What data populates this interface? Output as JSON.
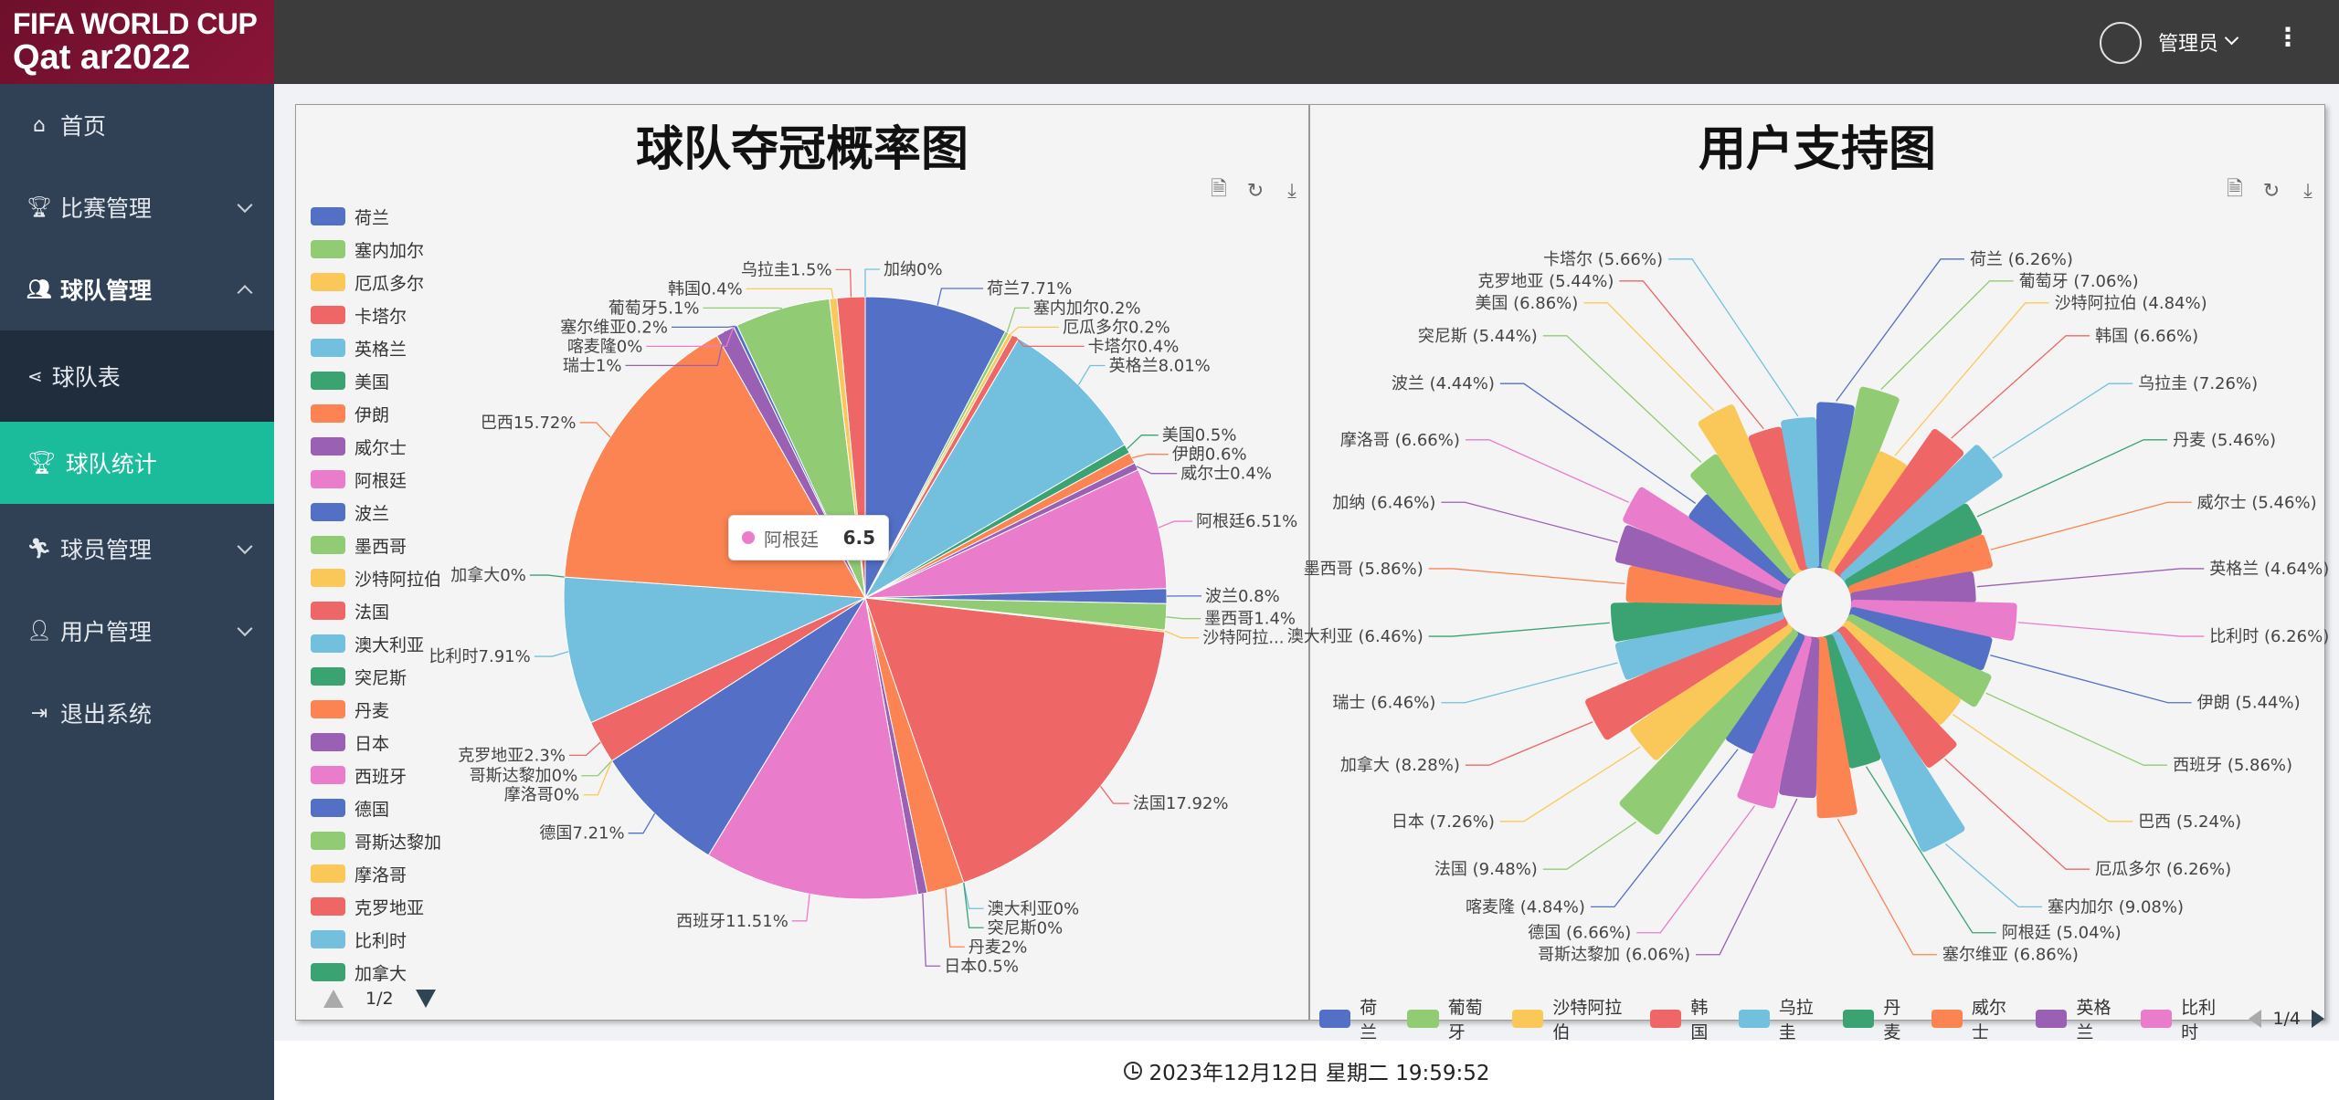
{
  "logo": {
    "line1": "FIFA WORLD CUP",
    "line2": "Qat ar2022"
  },
  "sidebar": {
    "items": [
      {
        "label": "首页"
      },
      {
        "label": "比赛管理"
      },
      {
        "label": "球队管理"
      },
      {
        "label": "球队表"
      },
      {
        "label": "球队统计"
      },
      {
        "label": "球员管理"
      },
      {
        "label": "用户管理"
      },
      {
        "label": "退出系统"
      }
    ]
  },
  "header": {
    "username": "管理员"
  },
  "toolbar_icons": [
    "data-view-icon",
    "restore-icon",
    "save-image-icon"
  ],
  "footer": {
    "datetime": "2023年12月12日 星期二 19:59:52"
  },
  "colors": [
    "#5470c6",
    "#91cc75",
    "#fac858",
    "#ee6666",
    "#73c0de",
    "#3ba272",
    "#fc8452",
    "#9a60b4",
    "#ea7ccc"
  ],
  "tooltip": {
    "name": "阿根廷",
    "value": "6.5"
  },
  "left_legend": {
    "items": [
      "荷兰",
      "塞内加尔",
      "厄瓜多尔",
      "卡塔尔",
      "英格兰",
      "美国",
      "伊朗",
      "威尔士",
      "阿根廷",
      "波兰",
      "墨西哥",
      "沙特阿拉伯",
      "法国",
      "澳大利亚",
      "突尼斯",
      "丹麦",
      "日本",
      "西班牙",
      "德国",
      "哥斯达黎加",
      "摩洛哥",
      "克罗地亚",
      "比利时",
      "加拿大"
    ],
    "page": "1/2"
  },
  "right_legend": {
    "items": [
      "荷兰",
      "葡萄牙",
      "沙特阿拉伯",
      "韩国",
      "乌拉圭",
      "丹麦",
      "威尔士",
      "英格兰",
      "比利时"
    ],
    "page": "1/4"
  },
  "chart_data": [
    {
      "type": "pie",
      "title": "球队夺冠概率图",
      "slices": [
        {
          "name": "荷兰",
          "value": 7.71,
          "label": "荷兰7.71%"
        },
        {
          "name": "塞内加尔",
          "value": 0.2,
          "label": "塞内加尔0.2%"
        },
        {
          "name": "厄瓜多尔",
          "value": 0.2,
          "label": "厄瓜多尔0.2%"
        },
        {
          "name": "卡塔尔",
          "value": 0.4,
          "label": "卡塔尔0.4%"
        },
        {
          "name": "英格兰",
          "value": 8.01,
          "label": "英格兰8.01%"
        },
        {
          "name": "美国",
          "value": 0.5,
          "label": "美国0.5%"
        },
        {
          "name": "伊朗",
          "value": 0.6,
          "label": "伊朗0.6%"
        },
        {
          "name": "威尔士",
          "value": 0.4,
          "label": "威尔士0.4%"
        },
        {
          "name": "阿根廷",
          "value": 6.51,
          "label": "阿根廷6.51%"
        },
        {
          "name": "波兰",
          "value": 0.8,
          "label": "波兰0.8%"
        },
        {
          "name": "墨西哥",
          "value": 1.4,
          "label": "墨西哥1.4%"
        },
        {
          "name": "沙特阿拉伯",
          "value": 0.1,
          "label": "沙特阿拉..."
        },
        {
          "name": "法国",
          "value": 17.92,
          "label": "法国17.92%"
        },
        {
          "name": "澳大利亚",
          "value": 0,
          "label": "澳大利亚0%"
        },
        {
          "name": "突尼斯",
          "value": 0,
          "label": "突尼斯0%"
        },
        {
          "name": "丹麦",
          "value": 2,
          "label": "丹麦2%"
        },
        {
          "name": "日本",
          "value": 0.5,
          "label": "日本0.5%"
        },
        {
          "name": "西班牙",
          "value": 11.51,
          "label": "西班牙11.51%"
        },
        {
          "name": "德国",
          "value": 7.21,
          "label": "德国7.21%"
        },
        {
          "name": "哥斯达黎加",
          "value": 0,
          "label": "哥斯达黎加0%"
        },
        {
          "name": "摩洛哥",
          "value": 0,
          "label": "摩洛哥0%"
        },
        {
          "name": "克罗地亚",
          "value": 2.3,
          "label": "克罗地亚2.3%"
        },
        {
          "name": "比利时",
          "value": 7.91,
          "label": "比利时7.91%"
        },
        {
          "name": "加拿大",
          "value": 0,
          "label": "加拿大0%"
        },
        {
          "name": "巴西",
          "value": 15.72,
          "label": "巴西15.72%"
        },
        {
          "name": "瑞士",
          "value": 1,
          "label": "瑞士1%"
        },
        {
          "name": "喀麦隆",
          "value": 0,
          "label": "喀麦隆0%"
        },
        {
          "name": "塞尔维亚",
          "value": 0.2,
          "label": "塞尔维亚0.2%"
        },
        {
          "name": "葡萄牙",
          "value": 5.1,
          "label": "葡萄牙5.1%"
        },
        {
          "name": "韩国",
          "value": 0.4,
          "label": "韩国0.4%"
        },
        {
          "name": "乌拉圭",
          "value": 1.5,
          "label": "乌拉圭1.5%"
        },
        {
          "name": "加纳",
          "value": 0,
          "label": "加纳0%"
        }
      ]
    },
    {
      "type": "pie",
      "subtype": "nightingale-rose",
      "title": "用户支持图",
      "slices": [
        {
          "name": "荷兰",
          "value": 6.26,
          "label": "荷兰 (6.26%)"
        },
        {
          "name": "葡萄牙",
          "value": 7.06,
          "label": "葡萄牙 (7.06%)"
        },
        {
          "name": "沙特阿拉伯",
          "value": 4.84,
          "label": "沙特阿拉伯 (4.84%)"
        },
        {
          "name": "韩国",
          "value": 6.66,
          "label": "韩国 (6.66%)"
        },
        {
          "name": "乌拉圭",
          "value": 7.26,
          "label": "乌拉圭 (7.26%)"
        },
        {
          "name": "丹麦",
          "value": 5.46,
          "label": "丹麦 (5.46%)"
        },
        {
          "name": "威尔士",
          "value": 5.46,
          "label": "威尔士 (5.46%)"
        },
        {
          "name": "英格兰",
          "value": 4.64,
          "label": "英格兰 (4.64%)"
        },
        {
          "name": "比利时",
          "value": 6.26,
          "label": "比利时 (6.26%)"
        },
        {
          "name": "伊朗",
          "value": 5.44,
          "label": "伊朗 (5.44%)"
        },
        {
          "name": "西班牙",
          "value": 5.86,
          "label": "西班牙 (5.86%)"
        },
        {
          "name": "巴西",
          "value": 5.24,
          "label": "巴西 (5.24%)"
        },
        {
          "name": "厄瓜多尔",
          "value": 6.26,
          "label": "厄瓜多尔 (6.26%)"
        },
        {
          "name": "塞内加尔",
          "value": 9.08,
          "label": "塞内加尔 (9.08%)"
        },
        {
          "name": "阿根廷",
          "value": 5.04,
          "label": "阿根廷 (5.04%)"
        },
        {
          "name": "塞尔维亚",
          "value": 6.86,
          "label": "塞尔维亚 (6.86%)"
        },
        {
          "name": "哥斯达黎加",
          "value": 6.06,
          "label": "哥斯达黎加 (6.06%)"
        },
        {
          "name": "德国",
          "value": 6.66,
          "label": "德国 (6.66%)"
        },
        {
          "name": "喀麦隆",
          "value": 4.84,
          "label": "喀麦隆 (4.84%)"
        },
        {
          "name": "法国",
          "value": 9.48,
          "label": "法国 (9.48%)"
        },
        {
          "name": "日本",
          "value": 7.26,
          "label": "日本 (7.26%)"
        },
        {
          "name": "加拿大",
          "value": 8.28,
          "label": "加拿大 (8.28%)"
        },
        {
          "name": "瑞士",
          "value": 6.46,
          "label": "瑞士 (6.46%)"
        },
        {
          "name": "澳大利亚",
          "value": 6.46,
          "label": "澳大利亚 (6.46%)"
        },
        {
          "name": "墨西哥",
          "value": 5.86,
          "label": "墨西哥 (5.86%)"
        },
        {
          "name": "加纳",
          "value": 6.46,
          "label": "加纳 (6.46%)"
        },
        {
          "name": "摩洛哥",
          "value": 6.66,
          "label": "摩洛哥 (6.66%)"
        },
        {
          "name": "波兰",
          "value": 4.44,
          "label": "波兰 (4.44%)"
        },
        {
          "name": "突尼斯",
          "value": 5.44,
          "label": "突尼斯 (5.44%)"
        },
        {
          "name": "美国",
          "value": 6.86,
          "label": "美国 (6.86%)"
        },
        {
          "name": "克罗地亚",
          "value": 5.44,
          "label": "克罗地亚 (5.44%)"
        },
        {
          "name": "卡塔尔",
          "value": 5.66,
          "label": "卡塔尔 (5.66%)"
        }
      ]
    }
  ]
}
